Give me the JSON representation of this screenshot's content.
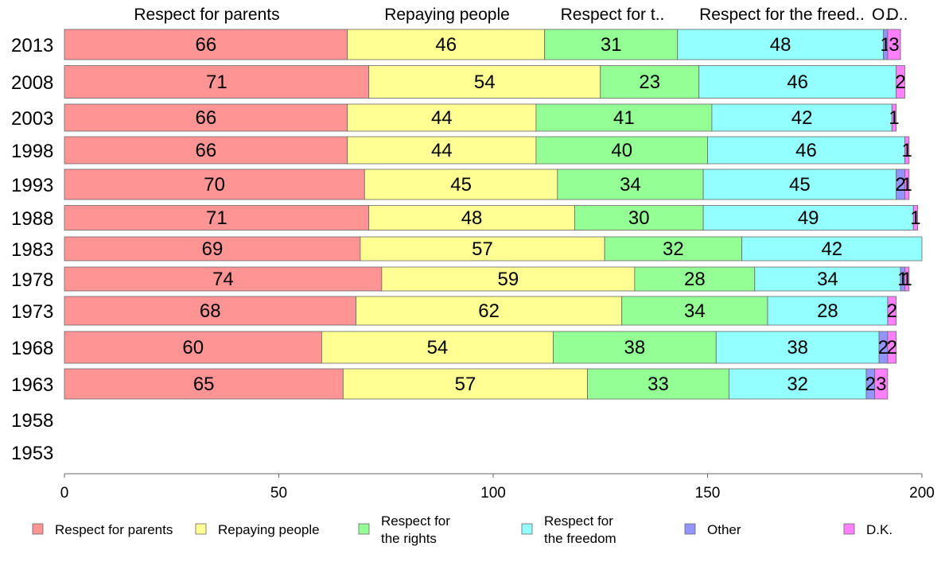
{
  "chart_data": {
    "type": "bar",
    "orientation": "horizontal",
    "stacked": true,
    "categories": [
      "2013",
      "2008",
      "2003",
      "1998",
      "1993",
      "1988",
      "1983",
      "1978",
      "1973",
      "1968",
      "1963",
      "1958",
      "1953"
    ],
    "series": [
      {
        "name": "Respect for parents",
        "color": "#ff9494",
        "values": [
          66,
          71,
          66,
          66,
          70,
          71,
          69,
          74,
          68,
          60,
          65,
          null,
          null
        ]
      },
      {
        "name": "Repaying people",
        "color": "#ffff94",
        "values": [
          46,
          54,
          44,
          44,
          45,
          48,
          57,
          59,
          62,
          54,
          57,
          null,
          null
        ]
      },
      {
        "name": "Respect for the rights",
        "color": "#94ff94",
        "values": [
          31,
          23,
          41,
          40,
          34,
          30,
          32,
          28,
          34,
          38,
          33,
          null,
          null
        ]
      },
      {
        "name": "Respect for the freedom",
        "color": "#94ffff",
        "values": [
          48,
          46,
          42,
          46,
          45,
          49,
          42,
          34,
          28,
          38,
          32,
          null,
          null
        ]
      },
      {
        "name": "Other",
        "color": "#9494ff",
        "values": [
          1,
          0,
          0,
          0,
          2,
          0,
          0,
          1,
          0,
          2,
          2,
          null,
          null
        ]
      },
      {
        "name": "D.K.",
        "color": "#ff80ff",
        "values": [
          3,
          2,
          1,
          1,
          1,
          1,
          0,
          1,
          2,
          2,
          3,
          null,
          null
        ]
      }
    ],
    "header_labels": [
      "Respect for parents",
      "Repaying people",
      "Respect for t..",
      "Respect for the freed..",
      "O..",
      "D.."
    ],
    "legend_labels": [
      [
        "Respect for parents"
      ],
      [
        "Repaying people"
      ],
      [
        "Respect for",
        "the rights"
      ],
      [
        "Respect for",
        "the freedom"
      ],
      [
        "Other"
      ],
      [
        "D.K."
      ]
    ],
    "xlim": [
      0,
      200
    ],
    "xticks": [
      0,
      50,
      100,
      150,
      200
    ],
    "xlabel": "",
    "ylabel": "",
    "grid": false,
    "legend_position": "bottom"
  }
}
